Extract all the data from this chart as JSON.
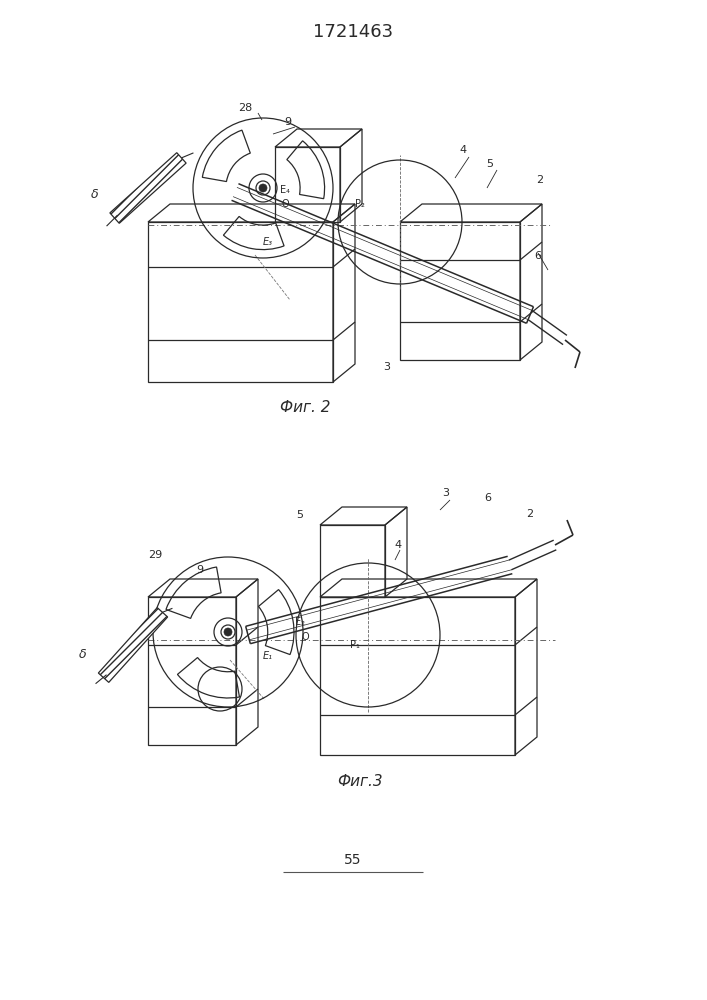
{
  "title": "1721463",
  "fig2_caption": "Фиг. 2",
  "fig3_caption": "Фиг.3",
  "page_number": "55",
  "bg_color": "#ffffff",
  "line_color": "#2a2a2a",
  "title_fontsize": 13,
  "caption_fontsize": 11,
  "page_fontsize": 10
}
